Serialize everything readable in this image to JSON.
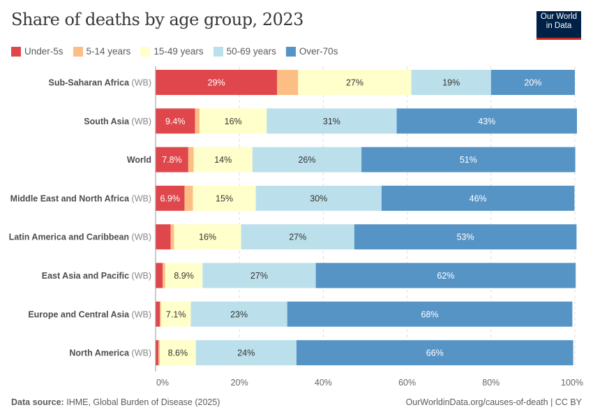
{
  "header": {
    "title": "Share of deaths by age group, 2023",
    "logo_text": "Our World in Data"
  },
  "colors": {
    "Under-5s": "#e0474c",
    "5-14 years": "#fdbe85",
    "15-49 years": "#ffffcc",
    "50-69 years": "#bce0eb",
    "Over-70s": "#5794c6"
  },
  "chart_data": {
    "type": "bar",
    "orientation": "horizontal",
    "stacked": true,
    "title": "Share of deaths by age group, 2023",
    "legend_position": "top-left",
    "xlim": [
      0,
      100
    ],
    "xticks": [
      "0%",
      "20%",
      "40%",
      "60%",
      "80%",
      "100%"
    ],
    "grid": true,
    "categories": [
      {
        "name": "Sub-Saharan Africa",
        "suffix": "(WB)"
      },
      {
        "name": "South Asia",
        "suffix": "(WB)"
      },
      {
        "name": "World",
        "suffix": ""
      },
      {
        "name": "Middle East and North Africa",
        "suffix": "(WB)"
      },
      {
        "name": "Latin America and Caribbean",
        "suffix": "(WB)"
      },
      {
        "name": "East Asia and Pacific",
        "suffix": "(WB)"
      },
      {
        "name": "Europe and Central Asia",
        "suffix": "(WB)"
      },
      {
        "name": "North America",
        "suffix": "(WB)"
      }
    ],
    "series": [
      {
        "name": "Under-5s",
        "values": [
          29,
          9.4,
          7.8,
          6.9,
          3.6,
          1.7,
          1.0,
          0.7
        ],
        "labels": [
          "29%",
          "9.4%",
          "7.8%",
          "6.9%",
          "",
          "",
          "",
          ""
        ]
      },
      {
        "name": "5-14 years",
        "values": [
          5,
          1.1,
          1.3,
          2,
          0.8,
          0.6,
          0.3,
          0.3
        ],
        "labels": [
          "",
          "",
          "",
          "",
          "",
          "",
          "",
          ""
        ]
      },
      {
        "name": "15-49 years",
        "values": [
          27,
          16,
          14,
          15,
          16,
          8.9,
          7.1,
          8.6
        ],
        "labels": [
          "27%",
          "16%",
          "14%",
          "15%",
          "16%",
          "8.9%",
          "7.1%",
          "8.6%"
        ]
      },
      {
        "name": "50-69 years",
        "values": [
          19,
          31,
          26,
          30,
          27,
          27,
          23,
          24
        ],
        "labels": [
          "19%",
          "31%",
          "26%",
          "30%",
          "27%",
          "27%",
          "23%",
          "24%"
        ]
      },
      {
        "name": "Over-70s",
        "values": [
          20,
          43,
          51,
          46,
          53,
          62,
          68,
          66
        ],
        "labels": [
          "20%",
          "43%",
          "51%",
          "46%",
          "53%",
          "62%",
          "68%",
          "66%"
        ]
      }
    ]
  },
  "footer": {
    "source_label": "Data source:",
    "source_text": "IHME, Global Burden of Disease (2025)",
    "credit": "OurWorldinData.org/causes-of-death | CC BY"
  }
}
